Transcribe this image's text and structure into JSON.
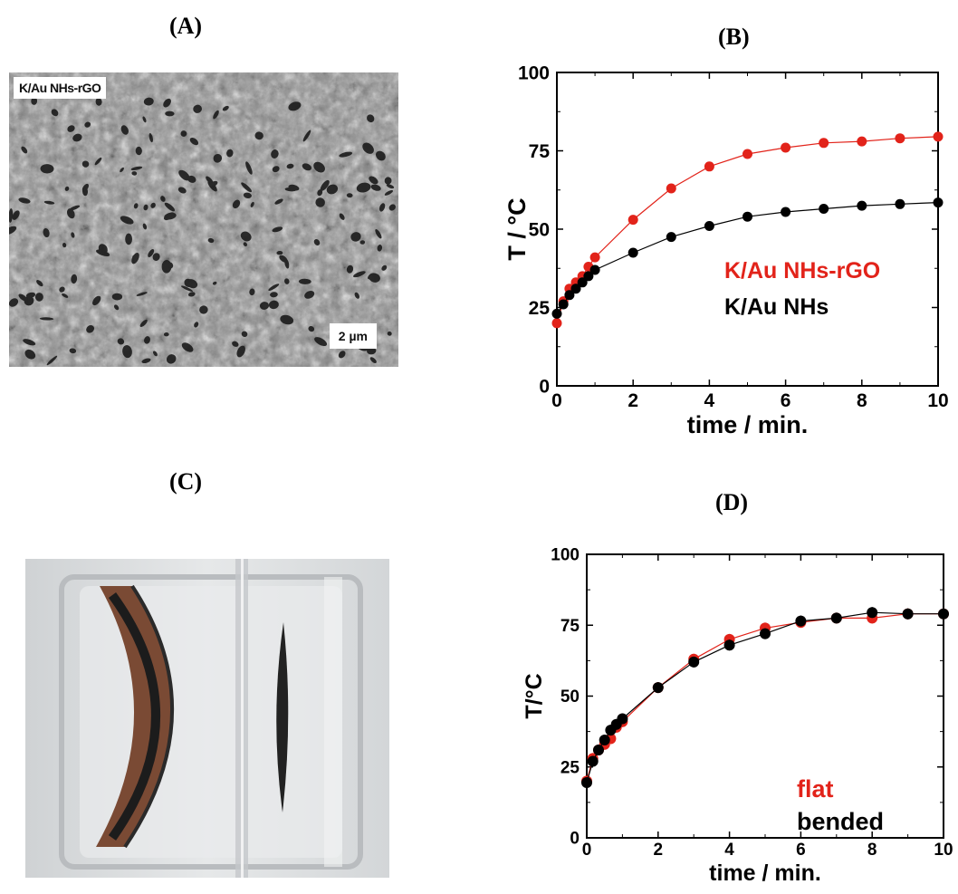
{
  "panels": {
    "a": {
      "label": "(A)",
      "sem_tag": "K/Au NHs-rGO",
      "scale_bar": "2 µm"
    },
    "b": {
      "label": "(B)"
    },
    "c": {
      "label": "(C)"
    },
    "d": {
      "label": "(D)"
    }
  },
  "colors": {
    "red": "#e2231a",
    "black": "#000000",
    "axis": "#000000"
  },
  "chart_data": [
    {
      "id": "B",
      "type": "line",
      "xlabel": "time / min.",
      "ylabel": "T / °C",
      "xlim": [
        0,
        10
      ],
      "ylim": [
        0,
        100
      ],
      "xticks": [
        0,
        2,
        4,
        6,
        8,
        10
      ],
      "yticks": [
        0,
        25,
        50,
        75,
        100
      ],
      "legend_position": "right-middle",
      "series": [
        {
          "name": "K/Au NHs-rGO",
          "color": "#e2231a",
          "x": [
            0,
            0.17,
            0.33,
            0.5,
            0.67,
            0.83,
            1,
            2,
            3,
            4,
            5,
            6,
            7,
            8,
            9,
            10
          ],
          "y": [
            20,
            27,
            31,
            33,
            35,
            38,
            41,
            53,
            63,
            70,
            74,
            76,
            77.5,
            78,
            79,
            79.5
          ]
        },
        {
          "name": "K/Au NHs",
          "color": "#000000",
          "x": [
            0,
            0.17,
            0.33,
            0.5,
            0.67,
            0.83,
            1,
            2,
            3,
            4,
            5,
            6,
            7,
            8,
            9,
            10
          ],
          "y": [
            23,
            26,
            29,
            31,
            33,
            35,
            37,
            42.5,
            47.5,
            51,
            54,
            55.5,
            56.5,
            57.5,
            58,
            58.5
          ]
        }
      ]
    },
    {
      "id": "D",
      "type": "line",
      "xlabel": "time / min.",
      "ylabel": "T/°C",
      "xlim": [
        0,
        10
      ],
      "ylim": [
        0,
        100
      ],
      "xticks": [
        0,
        2,
        4,
        6,
        8,
        10
      ],
      "yticks": [
        0,
        25,
        50,
        75,
        100
      ],
      "legend_position": "bottom-right",
      "series": [
        {
          "name": "flat",
          "color": "#e2231a",
          "x": [
            0,
            0.17,
            0.33,
            0.5,
            0.67,
            0.83,
            1,
            2,
            3,
            4,
            5,
            6,
            7,
            8,
            9,
            10
          ],
          "y": [
            20,
            28,
            31,
            33,
            35,
            39,
            41,
            53,
            63,
            70,
            74,
            76,
            77.5,
            77.5,
            79,
            79
          ]
        },
        {
          "name": "bended",
          "color": "#000000",
          "x": [
            0,
            0.17,
            0.33,
            0.5,
            0.67,
            0.83,
            1,
            2,
            3,
            4,
            5,
            6,
            7,
            8,
            9,
            10
          ],
          "y": [
            19.5,
            27,
            31,
            34.5,
            38,
            40,
            42,
            53,
            62,
            68,
            72,
            76.5,
            77.5,
            79.5,
            79,
            79
          ]
        }
      ]
    }
  ]
}
